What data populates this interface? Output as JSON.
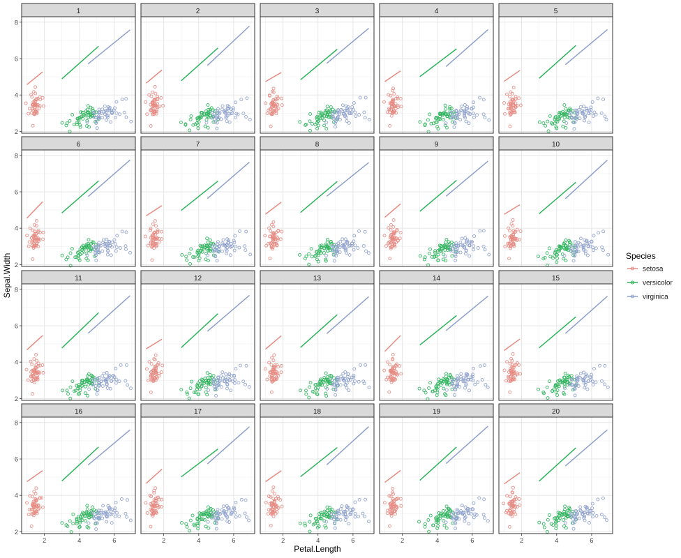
{
  "chart_data": {
    "type": "scatter",
    "facet_labels": [
      "1",
      "2",
      "3",
      "4",
      "5",
      "6",
      "7",
      "8",
      "9",
      "10",
      "11",
      "12",
      "13",
      "14",
      "15",
      "16",
      "17",
      "18",
      "19",
      "20"
    ],
    "xlabel": "Petal.Length",
    "ylabel": "Sepal.Width",
    "xlim": [
      0.7,
      7.2
    ],
    "ylim": [
      1.9,
      8.3
    ],
    "x_ticks": [
      2,
      4,
      6
    ],
    "y_ticks": [
      2,
      4,
      6,
      8
    ],
    "grid": true,
    "legend": {
      "title": "Species",
      "position": "right",
      "entries": [
        "setosa",
        "versicolor",
        "virginica"
      ]
    },
    "series": [
      {
        "name": "setosa",
        "color": "#E58B82",
        "points": [
          [
            1.4,
            3.5
          ],
          [
            1.4,
            3.0
          ],
          [
            1.3,
            3.2
          ],
          [
            1.5,
            3.1
          ],
          [
            1.4,
            3.6
          ],
          [
            1.7,
            3.9
          ],
          [
            1.4,
            3.4
          ],
          [
            1.5,
            3.4
          ],
          [
            1.4,
            2.9
          ],
          [
            1.5,
            3.1
          ],
          [
            1.5,
            3.7
          ],
          [
            1.6,
            3.4
          ],
          [
            1.4,
            3.0
          ],
          [
            1.1,
            3.0
          ],
          [
            1.2,
            4.0
          ],
          [
            1.5,
            4.4
          ],
          [
            1.3,
            3.9
          ],
          [
            1.4,
            3.5
          ],
          [
            1.7,
            3.8
          ],
          [
            1.5,
            3.8
          ],
          [
            1.7,
            3.4
          ],
          [
            1.5,
            3.7
          ],
          [
            1.0,
            3.6
          ],
          [
            1.7,
            3.3
          ],
          [
            1.9,
            3.4
          ],
          [
            1.6,
            3.0
          ],
          [
            1.6,
            3.4
          ],
          [
            1.5,
            3.5
          ],
          [
            1.4,
            3.4
          ],
          [
            1.6,
            3.2
          ],
          [
            1.6,
            3.1
          ],
          [
            1.5,
            3.4
          ],
          [
            1.5,
            4.1
          ],
          [
            1.4,
            4.2
          ],
          [
            1.5,
            3.1
          ],
          [
            1.2,
            3.2
          ],
          [
            1.3,
            3.5
          ],
          [
            1.4,
            3.6
          ],
          [
            1.3,
            3.0
          ],
          [
            1.5,
            3.4
          ],
          [
            1.3,
            3.5
          ],
          [
            1.3,
            2.3
          ],
          [
            1.3,
            3.2
          ],
          [
            1.6,
            3.5
          ],
          [
            1.9,
            3.8
          ],
          [
            1.4,
            3.0
          ],
          [
            1.6,
            3.8
          ],
          [
            1.4,
            3.2
          ],
          [
            1.5,
            3.7
          ],
          [
            1.4,
            3.3
          ]
        ],
        "trend": [
          [
            1.0,
            4.65
          ],
          [
            1.9,
            5.35
          ]
        ]
      },
      {
        "name": "versicolor",
        "color": "#2DB35C",
        "points": [
          [
            4.7,
            3.2
          ],
          [
            4.5,
            3.2
          ],
          [
            4.9,
            3.1
          ],
          [
            4.0,
            2.3
          ],
          [
            4.6,
            2.8
          ],
          [
            4.5,
            2.8
          ],
          [
            4.7,
            3.3
          ],
          [
            3.3,
            2.4
          ],
          [
            4.6,
            2.9
          ],
          [
            3.9,
            2.7
          ],
          [
            3.5,
            2.0
          ],
          [
            4.2,
            3.0
          ],
          [
            4.0,
            2.2
          ],
          [
            4.7,
            2.9
          ],
          [
            3.6,
            2.9
          ],
          [
            4.4,
            3.1
          ],
          [
            4.5,
            3.0
          ],
          [
            4.1,
            2.7
          ],
          [
            4.5,
            2.2
          ],
          [
            3.9,
            2.5
          ],
          [
            4.8,
            3.2
          ],
          [
            4.0,
            2.8
          ],
          [
            4.9,
            2.5
          ],
          [
            4.7,
            2.8
          ],
          [
            4.3,
            2.9
          ],
          [
            4.4,
            3.0
          ],
          [
            4.8,
            2.8
          ],
          [
            5.0,
            3.0
          ],
          [
            4.5,
            2.9
          ],
          [
            3.5,
            2.6
          ],
          [
            3.8,
            2.4
          ],
          [
            3.7,
            2.4
          ],
          [
            3.9,
            2.7
          ],
          [
            5.1,
            2.7
          ],
          [
            4.5,
            3.0
          ],
          [
            4.5,
            3.4
          ],
          [
            4.7,
            3.1
          ],
          [
            4.4,
            2.3
          ],
          [
            4.1,
            3.0
          ],
          [
            4.0,
            2.5
          ],
          [
            4.4,
            2.6
          ],
          [
            4.6,
            3.0
          ],
          [
            4.0,
            2.6
          ],
          [
            3.3,
            2.3
          ],
          [
            4.2,
            2.7
          ],
          [
            4.2,
            3.0
          ],
          [
            4.2,
            2.9
          ],
          [
            4.3,
            2.9
          ],
          [
            3.0,
            2.5
          ],
          [
            4.1,
            2.8
          ]
        ],
        "trend": [
          [
            3.0,
            4.9
          ],
          [
            5.1,
            6.6
          ]
        ]
      },
      {
        "name": "virginica",
        "color": "#8DA0CB",
        "points": [
          [
            6.0,
            3.3
          ],
          [
            5.1,
            2.7
          ],
          [
            5.9,
            3.0
          ],
          [
            5.6,
            2.9
          ],
          [
            5.8,
            3.0
          ],
          [
            6.6,
            3.0
          ],
          [
            4.5,
            2.5
          ],
          [
            6.3,
            2.9
          ],
          [
            5.8,
            2.5
          ],
          [
            6.1,
            3.6
          ],
          [
            5.1,
            3.2
          ],
          [
            5.3,
            2.7
          ],
          [
            5.5,
            3.0
          ],
          [
            5.0,
            2.5
          ],
          [
            5.1,
            2.8
          ],
          [
            5.3,
            3.2
          ],
          [
            5.5,
            3.0
          ],
          [
            6.7,
            3.8
          ],
          [
            6.9,
            2.6
          ],
          [
            5.0,
            2.2
          ],
          [
            5.7,
            3.2
          ],
          [
            4.9,
            2.8
          ],
          [
            6.7,
            2.8
          ],
          [
            4.9,
            2.7
          ],
          [
            5.7,
            3.3
          ],
          [
            6.0,
            3.2
          ],
          [
            4.8,
            2.8
          ],
          [
            4.9,
            3.0
          ],
          [
            5.6,
            2.8
          ],
          [
            5.8,
            3.0
          ],
          [
            6.1,
            2.8
          ],
          [
            6.4,
            3.8
          ],
          [
            5.6,
            2.8
          ],
          [
            5.1,
            2.8
          ],
          [
            5.6,
            2.6
          ],
          [
            6.1,
            3.0
          ],
          [
            5.6,
            3.4
          ],
          [
            5.5,
            3.1
          ],
          [
            4.8,
            3.0
          ],
          [
            5.4,
            3.1
          ],
          [
            5.6,
            3.1
          ],
          [
            5.1,
            3.1
          ],
          [
            5.1,
            2.7
          ],
          [
            5.9,
            3.2
          ],
          [
            5.7,
            3.3
          ],
          [
            5.2,
            3.0
          ],
          [
            5.0,
            2.5
          ],
          [
            5.2,
            3.0
          ],
          [
            5.4,
            3.4
          ],
          [
            5.1,
            3.0
          ]
        ],
        "trend": [
          [
            4.5,
            5.65
          ],
          [
            6.9,
            7.7
          ]
        ]
      }
    ]
  }
}
